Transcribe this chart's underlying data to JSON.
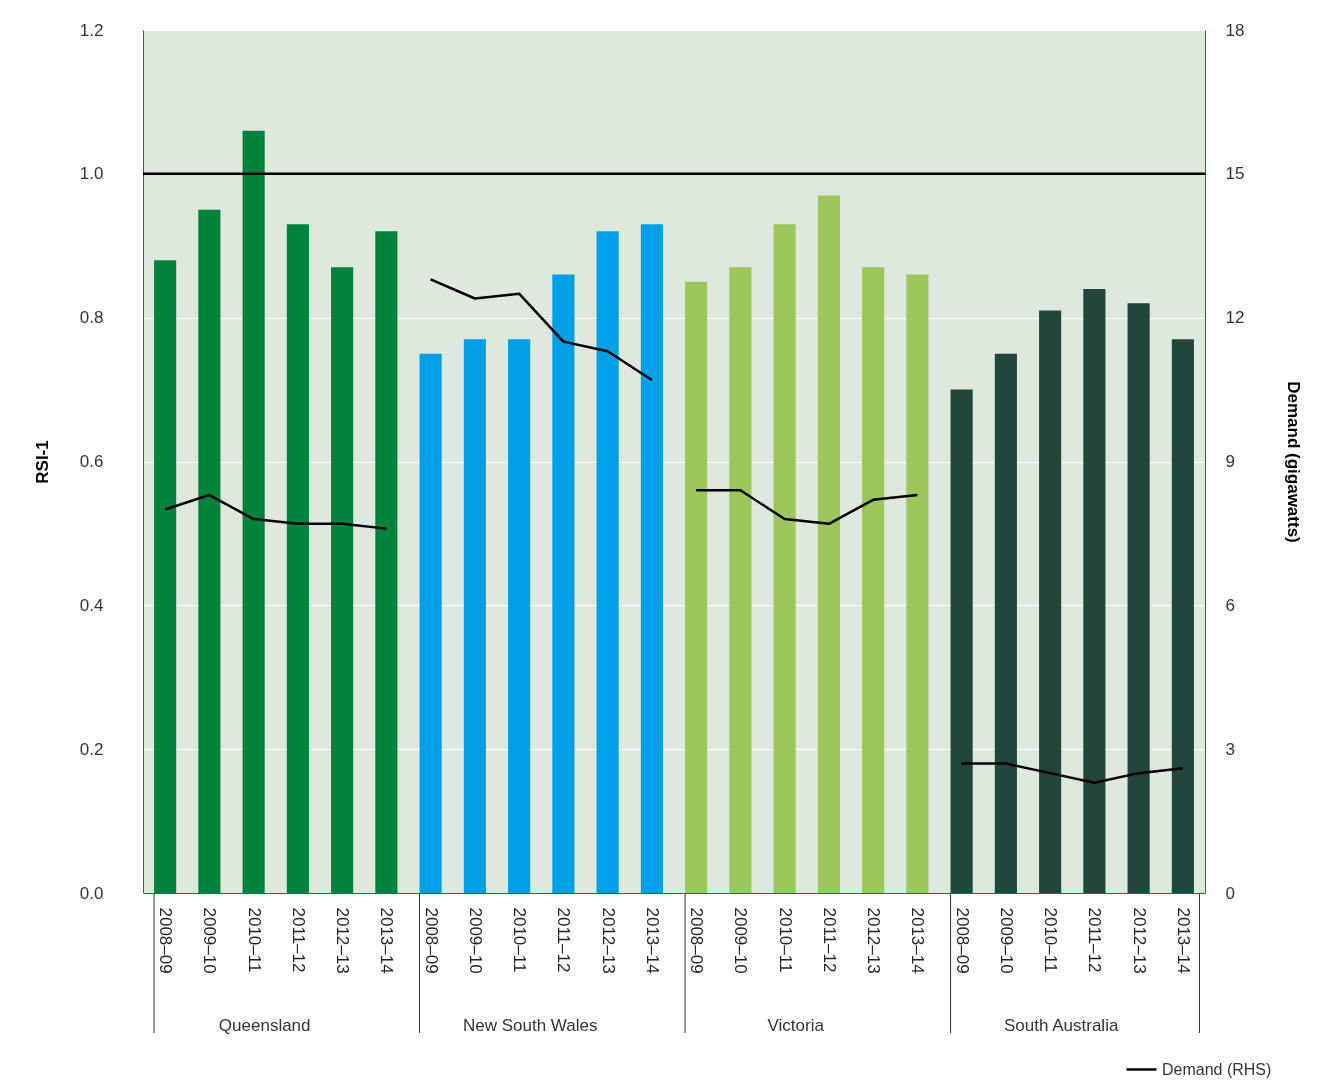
{
  "chart_data": {
    "type": "bar",
    "ylabel": "RSI-1",
    "y2label": "Demand (gigawatts)",
    "categories": [
      "2008–09",
      "2009–10",
      "2010–11",
      "2011–12",
      "2012–13",
      "2013–14",
      "2008–09",
      "2009–10",
      "2010–11",
      "2011–12",
      "2012–13",
      "2013–14",
      "2008–09",
      "2009–10",
      "2010–11",
      "2011–12",
      "2012–13",
      "2013–14",
      "2008–09",
      "2009–10",
      "2010–11",
      "2011–12",
      "2012–13",
      "2013–14"
    ],
    "series": [
      {
        "colors": [
          "#00843b",
          "#00843b",
          "#00843b",
          "#00843b",
          "#00843b",
          "#00843b",
          "#009fe8",
          "#009fe8",
          "#009fe8",
          "#009fe8",
          "#009fe8",
          "#009fe8",
          "#9dc75a",
          "#9dc75a",
          "#9dc75a",
          "#9dc75a",
          "#9dc75a",
          "#9dc75a",
          "#22463b",
          "#22463b",
          "#22463b",
          "#22463b",
          "#22463b",
          "#22463b"
        ],
        "values": [
          0.88,
          0.95,
          1.06,
          0.93,
          0.87,
          0.92,
          0.75,
          0.77,
          0.77,
          0.86,
          0.92,
          0.93,
          0.85,
          0.87,
          0.93,
          0.97,
          0.87,
          0.86,
          0.7,
          0.75,
          0.81,
          0.84,
          0.82,
          0.77
        ]
      },
      {
        "type": "line",
        "name": "Demand (RHS)",
        "color": "#000000",
        "axis": "y2",
        "values": [
          8.0,
          8.3,
          7.8,
          7.7,
          7.7,
          7.6,
          12.8,
          12.4,
          12.5,
          11.5,
          11.3,
          10.7,
          8.4,
          8.4,
          7.8,
          7.7,
          8.2,
          8.3,
          2.7,
          2.7,
          2.5,
          2.3,
          2.5,
          2.6
        ]
      }
    ],
    "ylim": [
      0,
      1.2
    ],
    "yticks": [
      {
        "value": 0,
        "label": "0.0"
      },
      0.2,
      0.4,
      0.6,
      0.8,
      {
        "value": 1,
        "label": "1.0"
      },
      {
        "value": 1.2,
        "label": "1.2"
      }
    ],
    "y2lim": [
      0,
      18
    ],
    "y2ticks": [
      0,
      3,
      6,
      9,
      12,
      15,
      18
    ],
    "ref_lines": [
      {
        "axis": "y",
        "value": 1,
        "color": "#000000"
      }
    ],
    "annotations": [
      "Queensland",
      "New South Wales",
      "Victoria",
      "South Australia"
    ],
    "grid": "y",
    "legend": "bottom right"
  }
}
